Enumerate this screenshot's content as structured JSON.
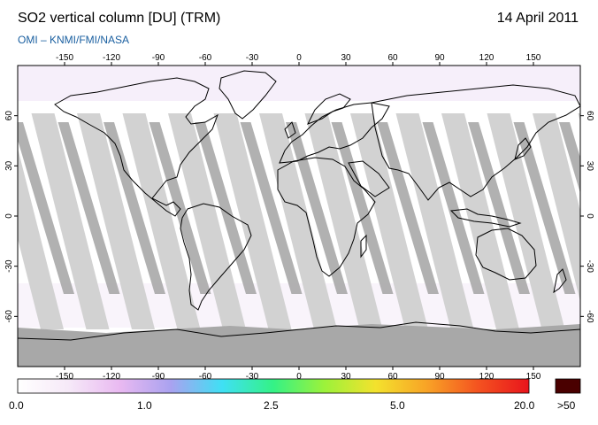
{
  "header": {
    "title": "SO2 vertical column [DU] (TRM)",
    "date": "14 April 2011",
    "credit": "OMI  –  KNMI/FMI/NASA"
  },
  "map": {
    "projection": "equirectangular",
    "lon_range": [
      -180,
      180
    ],
    "lat_range": [
      -90,
      90
    ],
    "lon_ticks": [
      "-150",
      "-120",
      "-90",
      "-60",
      "-30",
      "0",
      "30",
      "60",
      "90",
      "120",
      "150"
    ],
    "lat_ticks_left": [
      "60",
      "30",
      "0",
      "-30",
      "-60"
    ],
    "lat_ticks_right": [
      "60",
      "30",
      "0",
      "-30",
      "-60"
    ],
    "colors": {
      "frame": "#000000",
      "no_data_swath": "#d2d2d2",
      "overlap_swath": "#a8a8a8",
      "polar_no_data": "#a8a8a8",
      "coastline": "#000000"
    }
  },
  "colorbar": {
    "labels": [
      "0.0",
      "1.0",
      "2.5",
      "5.0",
      "20.0",
      ">50"
    ],
    "overflow_color": "#4a0000",
    "gradient_colors": [
      "#ffffff",
      "#f6e9f8",
      "#e9b9f1",
      "#a9a2f0",
      "#3fe0f4",
      "#34f286",
      "#9cf23a",
      "#f3e22d",
      "#f8a326",
      "#f45320",
      "#e8141c"
    ]
  }
}
